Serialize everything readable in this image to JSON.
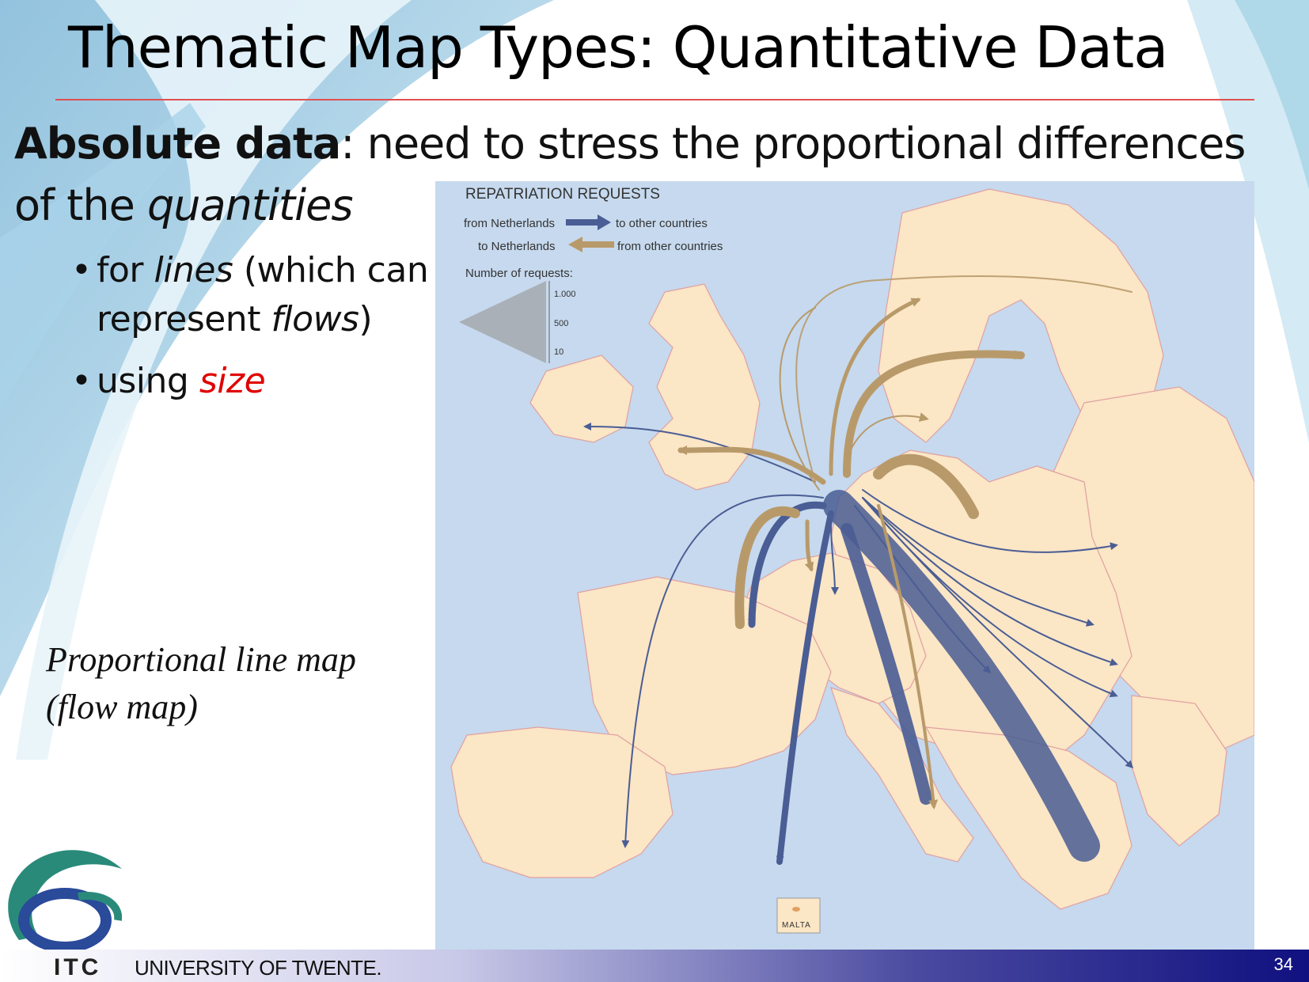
{
  "slide": {
    "title": "Thematic Map Types: Quantitative Data",
    "lead_bold": "Absolute data",
    "lead_rest1": ": need to stress the proportional differences",
    "lead_line2_a": "of the ",
    "lead_line2_b": "quantities",
    "bullets": [
      {
        "a": "for ",
        "b": "lines",
        "c": " (which can"
      },
      {
        "a": "represent ",
        "b": "flows",
        "c": ")"
      },
      {
        "a": "using ",
        "b": "size"
      }
    ],
    "caption_line1": "Proportional line map",
    "caption_line2": "(flow map)",
    "page_number": "34"
  },
  "footer": {
    "org_short": "ITC",
    "org_name": "UNIVERSITY OF TWENTE."
  },
  "map": {
    "title": "REPATRIATION REQUESTS",
    "legend_from_nl_left": "from Netherlands",
    "legend_from_nl_right": "to other countries",
    "legend_to_nl_left": "to Netherlands",
    "legend_to_nl_right": "from other countries",
    "legend_count_label": "Number of requests:",
    "scale_ticks": [
      "1.000",
      "500",
      "10"
    ],
    "inset_label": "MALTA",
    "colors": {
      "outbound": "#4a5d94",
      "inbound": "#b89a6a",
      "land": "#fbe6c6",
      "sea": "#c6d9ee"
    }
  }
}
